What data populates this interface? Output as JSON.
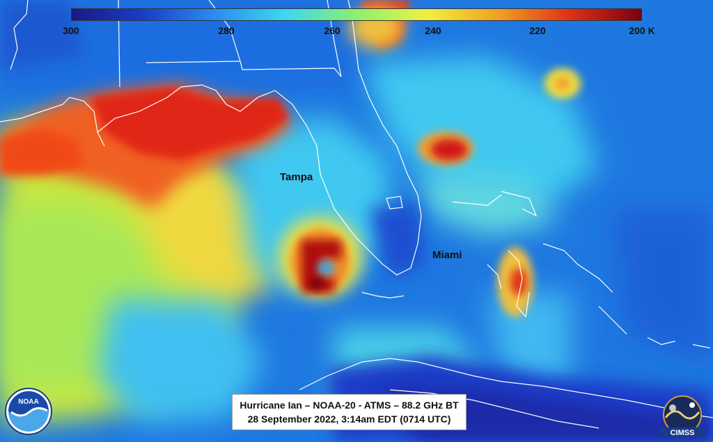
{
  "colorbar": {
    "gradient": [
      "#1a1a80",
      "#1a3cc8",
      "#2a8cf0",
      "#3cd8f0",
      "#8cf070",
      "#f0f040",
      "#f0a020",
      "#e03018",
      "#7a0010"
    ],
    "ticks": [
      "300",
      "280",
      "260",
      "240",
      "220",
      "200 K"
    ]
  },
  "cities": {
    "tampa": "Tampa",
    "miami": "Miami"
  },
  "caption": {
    "line1": "Hurricane Ian – NOAA-20 - ATMS – 88.2 GHz BT",
    "line2": "28 September 2022, 3:14am EDT (0714 UTC)"
  },
  "logos": {
    "noaa": "NOAA",
    "cimss": "CIMSS"
  },
  "colors": {
    "ocean_base": "#1a6fd8",
    "border_lines": "#ffffff"
  }
}
